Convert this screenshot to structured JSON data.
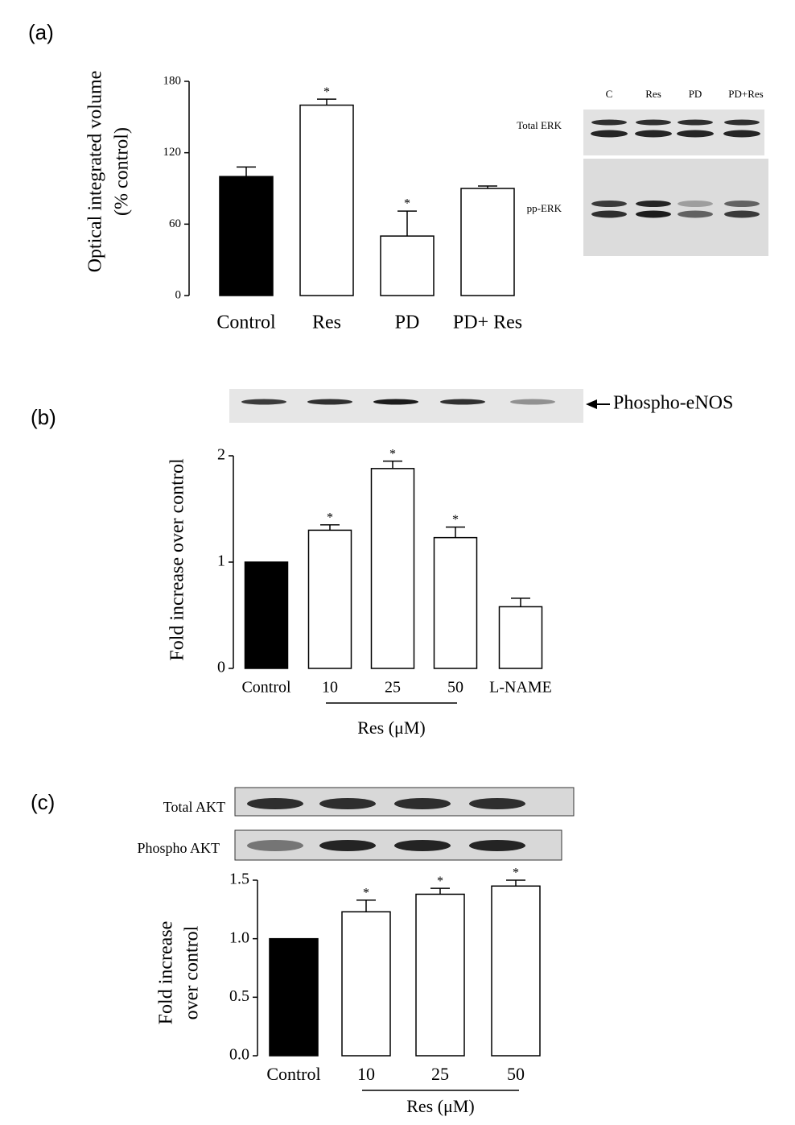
{
  "chart_data": [
    {
      "type": "bar",
      "panel_label": "(a)",
      "y_label": [
        "Optical integrated volume",
        "(% control)"
      ],
      "categories": [
        "Control",
        "Res",
        "PD",
        "PD+ Res"
      ],
      "values": [
        100,
        160,
        50,
        90
      ],
      "errors": [
        8,
        5,
        21,
        2
      ],
      "colors": [
        "#000000",
        "#ffffff",
        "#ffffff",
        "#ffffff"
      ],
      "markers": [
        null,
        "*",
        "*",
        null
      ],
      "ylim": [
        0,
        180
      ],
      "yticks": [
        0,
        60,
        120,
        180
      ],
      "blot": {
        "lanes": [
          "C",
          "Res",
          "PD",
          "PD+Res"
        ],
        "rows": [
          "Total ERK",
          "pp-ERK"
        ]
      }
    },
    {
      "type": "bar",
      "panel_label": "(b)",
      "y_label": [
        "Fold increase over control"
      ],
      "categories": [
        "Control",
        "10",
        "25",
        "50",
        "L-NAME"
      ],
      "values": [
        1.0,
        1.3,
        1.88,
        1.23,
        0.58
      ],
      "errors": [
        null,
        0.05,
        0.07,
        0.1,
        0.08
      ],
      "colors": [
        "#000000",
        "#ffffff",
        "#ffffff",
        "#ffffff",
        "#ffffff"
      ],
      "markers": [
        null,
        "*",
        "*",
        "*",
        null
      ],
      "group_label": "Res (μM)",
      "ylim": [
        0,
        2
      ],
      "yticks": [
        0,
        1,
        2
      ],
      "blot": {
        "rows": [
          "Phospho-eNOS"
        ]
      }
    },
    {
      "type": "bar",
      "panel_label": "(c)",
      "y_label": [
        "Fold increase",
        "over control"
      ],
      "categories": [
        "Control",
        "10",
        "25",
        "50"
      ],
      "values": [
        1.0,
        1.23,
        1.38,
        1.45
      ],
      "errors": [
        null,
        0.1,
        0.05,
        0.05
      ],
      "colors": [
        "#000000",
        "#ffffff",
        "#ffffff",
        "#ffffff"
      ],
      "markers": [
        null,
        "*",
        "*",
        "*"
      ],
      "group_label": "Res (μM)",
      "ylim": [
        0,
        1.5
      ],
      "yticks": [
        {
          "value": 0,
          "label": "0.0"
        },
        0.5,
        {
          "value": 1,
          "label": "1.0"
        },
        1.5
      ],
      "blot": {
        "rows": [
          "Total AKT",
          "Phospho AKT"
        ]
      }
    }
  ]
}
